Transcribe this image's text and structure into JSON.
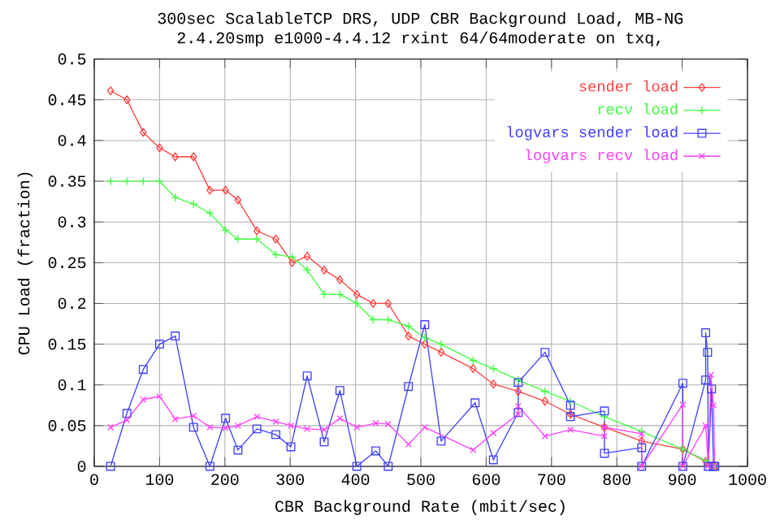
{
  "chart_data": {
    "type": "line",
    "title": "300sec ScalableTCP DRS, UDP CBR Background Load, MB-NG",
    "subtitle": "2.4.20smp e1000-4.4.12 rxint 64/64moderate on txq,",
    "xlabel": "CBR Background Rate (mbit/sec)",
    "ylabel": "CPU Load (fraction)",
    "xlim": [
      0,
      1000
    ],
    "ylim": [
      0,
      0.5
    ],
    "xticks": [
      0,
      100,
      200,
      300,
      400,
      500,
      600,
      700,
      800,
      900,
      1000
    ],
    "yticks": [
      0,
      0.05,
      0.1,
      0.15,
      0.2,
      0.25,
      0.3,
      0.35,
      0.4,
      0.45,
      0.5
    ],
    "grid": true,
    "legend": "top right",
    "line_style": "solid",
    "series": [
      {
        "name": "sender load",
        "color": "#ff4040",
        "marker": "diamond",
        "x": [
          25,
          50,
          75,
          100,
          124,
          152,
          177,
          201,
          220,
          249,
          278,
          303,
          326,
          352,
          376,
          402,
          427,
          450,
          481,
          506,
          531,
          580,
          611,
          649,
          690,
          729,
          781,
          838,
          901,
          936,
          945,
          950
        ],
        "values": [
          0.461,
          0.45,
          0.41,
          0.391,
          0.38,
          0.38,
          0.339,
          0.339,
          0.327,
          0.289,
          0.279,
          0.25,
          0.258,
          0.241,
          0.229,
          0.211,
          0.2,
          0.2,
          0.16,
          0.15,
          0.14,
          0.12,
          0.101,
          0.092,
          0.08,
          0.064,
          0.048,
          0.031,
          0.021,
          0.006,
          0,
          0
        ]
      },
      {
        "name": "recv load",
        "color": "#40ff40",
        "marker": "plus",
        "x": [
          25,
          50,
          75,
          100,
          124,
          152,
          177,
          201,
          220,
          249,
          278,
          303,
          326,
          352,
          376,
          402,
          427,
          450,
          481,
          506,
          531,
          580,
          611,
          649,
          690,
          729,
          781,
          838,
          901,
          936,
          945,
          950
        ],
        "values": [
          0.35,
          0.35,
          0.35,
          0.35,
          0.33,
          0.322,
          0.311,
          0.29,
          0.279,
          0.279,
          0.26,
          0.257,
          0.241,
          0.211,
          0.211,
          0.2,
          0.18,
          0.18,
          0.172,
          0.158,
          0.15,
          0.13,
          0.12,
          0.106,
          0.092,
          0.08,
          0.061,
          0.043,
          0.021,
          0.007,
          0,
          0
        ]
      },
      {
        "name": "logvars sender load",
        "color": "#4040ff",
        "marker": "square",
        "x": [
          25,
          50,
          75,
          100,
          124,
          152,
          177,
          201,
          220,
          249,
          278,
          301,
          326,
          352,
          376,
          402,
          431,
          450,
          481,
          506,
          531,
          583,
          611,
          649,
          649,
          690,
          729,
          729,
          781,
          781,
          838,
          838,
          901,
          901,
          936,
          936,
          939,
          940,
          945,
          948,
          950
        ],
        "values": [
          0,
          0.065,
          0.119,
          0.15,
          0.16,
          0.048,
          0,
          0.059,
          0.02,
          0.046,
          0.039,
          0.024,
          0.111,
          0.03,
          0.093,
          0,
          0.019,
          0,
          0.098,
          0.174,
          0.031,
          0.078,
          0.008,
          0.066,
          0.103,
          0.14,
          0.075,
          0.061,
          0.068,
          0.016,
          0.023,
          0,
          0.102,
          0,
          0.106,
          0.164,
          0.14,
          0,
          0.095,
          0,
          0
        ]
      },
      {
        "name": "logvars recv load",
        "color": "#ff40ff",
        "marker": "cross",
        "x": [
          25,
          50,
          75,
          100,
          124,
          152,
          177,
          201,
          220,
          249,
          278,
          301,
          326,
          352,
          376,
          402,
          431,
          450,
          481,
          506,
          580,
          611,
          649,
          649,
          690,
          729,
          781,
          781,
          838,
          838,
          901,
          901,
          936,
          940,
          944,
          948,
          950
        ],
        "values": [
          0.048,
          0.057,
          0.082,
          0.086,
          0.058,
          0.062,
          0.048,
          0.047,
          0.05,
          0.061,
          0.055,
          0.05,
          0.046,
          0.045,
          0.059,
          0.048,
          0.053,
          0.052,
          0.027,
          0.048,
          0.02,
          0.041,
          0.064,
          0.074,
          0.037,
          0.045,
          0.037,
          0.048,
          0.04,
          0,
          0.076,
          0,
          0.05,
          0,
          0.112,
          0.075,
          0
        ]
      }
    ]
  }
}
